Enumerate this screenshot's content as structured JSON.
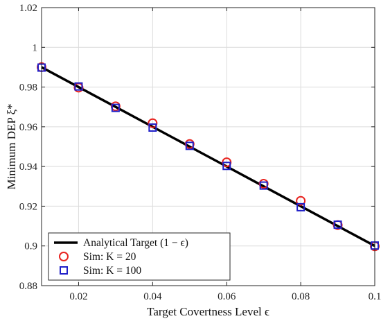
{
  "chart_data": {
    "type": "line",
    "xlabel": "Target Covertness Level ϵ",
    "ylabel": "Minimum DEP ξ*",
    "xlim": [
      0.01,
      0.1
    ],
    "ylim": [
      0.88,
      1.02
    ],
    "x_ticks": [
      0.02,
      0.04,
      0.06,
      0.08,
      0.1
    ],
    "x_tick_labels": [
      "0.02",
      "0.04",
      "0.06",
      "0.08",
      "0.1"
    ],
    "y_ticks": [
      0.88,
      0.9,
      0.92,
      0.94,
      0.96,
      0.98,
      1.0,
      1.02
    ],
    "y_tick_labels": [
      "0.88",
      "0.9",
      "0.92",
      "0.94",
      "0.96",
      "0.98",
      "1",
      "1.02"
    ],
    "grid": true,
    "legend_position": "bottom-left",
    "x": [
      0.01,
      0.02,
      0.03,
      0.04,
      0.05,
      0.06,
      0.07,
      0.08,
      0.09,
      0.1
    ],
    "series": [
      {
        "name": "Analytical Target (1 − ϵ)",
        "style": "line",
        "color": "#000000",
        "values": [
          0.99,
          0.98,
          0.97,
          0.96,
          0.95,
          0.94,
          0.93,
          0.92,
          0.91,
          0.9
        ]
      },
      {
        "name": "Sim: K = 20",
        "style": "circle",
        "color": "#e8231f",
        "values": [
          0.99,
          0.9797,
          0.9703,
          0.9618,
          0.9513,
          0.9421,
          0.9313,
          0.9227,
          0.9105,
          0.8998
        ]
      },
      {
        "name": "Sim: K = 100",
        "style": "square",
        "color": "#1f1fc8",
        "values": [
          0.9898,
          0.9803,
          0.9695,
          0.9596,
          0.9504,
          0.9403,
          0.9304,
          0.9195,
          0.9107,
          0.9002
        ]
      }
    ]
  }
}
